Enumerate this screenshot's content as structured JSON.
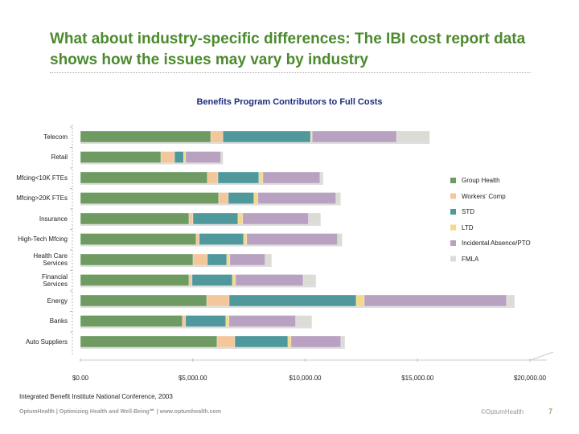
{
  "slide": {
    "title": "What about industry-specific differences: The IBI cost report data shows how the issues may vary by industry",
    "source": "Integrated Benefit Institute National Conference, 2003",
    "footer": "OptumHealth | Optimizing Health and Well-Being℠ | www.optumhealth.com",
    "copyright": "©OptumHealth",
    "page": "7"
  },
  "chart_data": {
    "type": "stacked-bar-horizontal",
    "title": "Benefits Program Contributors to Full Costs",
    "categories": [
      "Telecom",
      "Retail",
      "Mfcing<10K FTEs",
      "Mfcing>20K FTEs",
      "Insurance",
      "High-Tech Mfcing",
      "Health Care Services",
      "Financial Services",
      "Energy",
      "Banks",
      "Auto Suppliers"
    ],
    "series": [
      {
        "name": "Group Health",
        "color": "#6f9b63",
        "values": [
          5800,
          3580,
          5650,
          6150,
          4830,
          5150,
          5010,
          4830,
          5620,
          4540,
          6080
        ]
      },
      {
        "name": "Workers' Comp",
        "color": "#f4c79a",
        "values": [
          540,
          610,
          470,
          430,
          180,
          140,
          640,
          140,
          1000,
          140,
          790
        ]
      },
      {
        "name": "STD",
        "color": "#4f999d",
        "values": [
          3900,
          400,
          1820,
          1140,
          2000,
          1970,
          860,
          1790,
          5650,
          1790,
          2360
        ]
      },
      {
        "name": "LTD",
        "color": "#f3d98a",
        "values": [
          70,
          90,
          180,
          180,
          210,
          140,
          140,
          140,
          360,
          140,
          140
        ]
      },
      {
        "name": "Incidental Absence/PTO",
        "color": "#b9a1c1",
        "values": [
          3760,
          1570,
          2540,
          3470,
          2930,
          4040,
          1570,
          3010,
          6330,
          2970,
          2220
        ]
      },
      {
        "name": "FMLA",
        "color": "#dcdcd6",
        "values": [
          1470,
          100,
          140,
          210,
          540,
          210,
          290,
          570,
          360,
          720,
          180
        ]
      }
    ],
    "xlim": [
      0,
      20000
    ],
    "xticks": [
      {
        "value": 0,
        "label": "$0.00"
      },
      {
        "value": 5000,
        "label": "$5,000.00"
      },
      {
        "value": 10000,
        "label": "$10,000.00"
      },
      {
        "value": 15000,
        "label": "$15,000.00"
      },
      {
        "value": 20000,
        "label": "$20,000.00"
      }
    ],
    "legend": "right"
  }
}
